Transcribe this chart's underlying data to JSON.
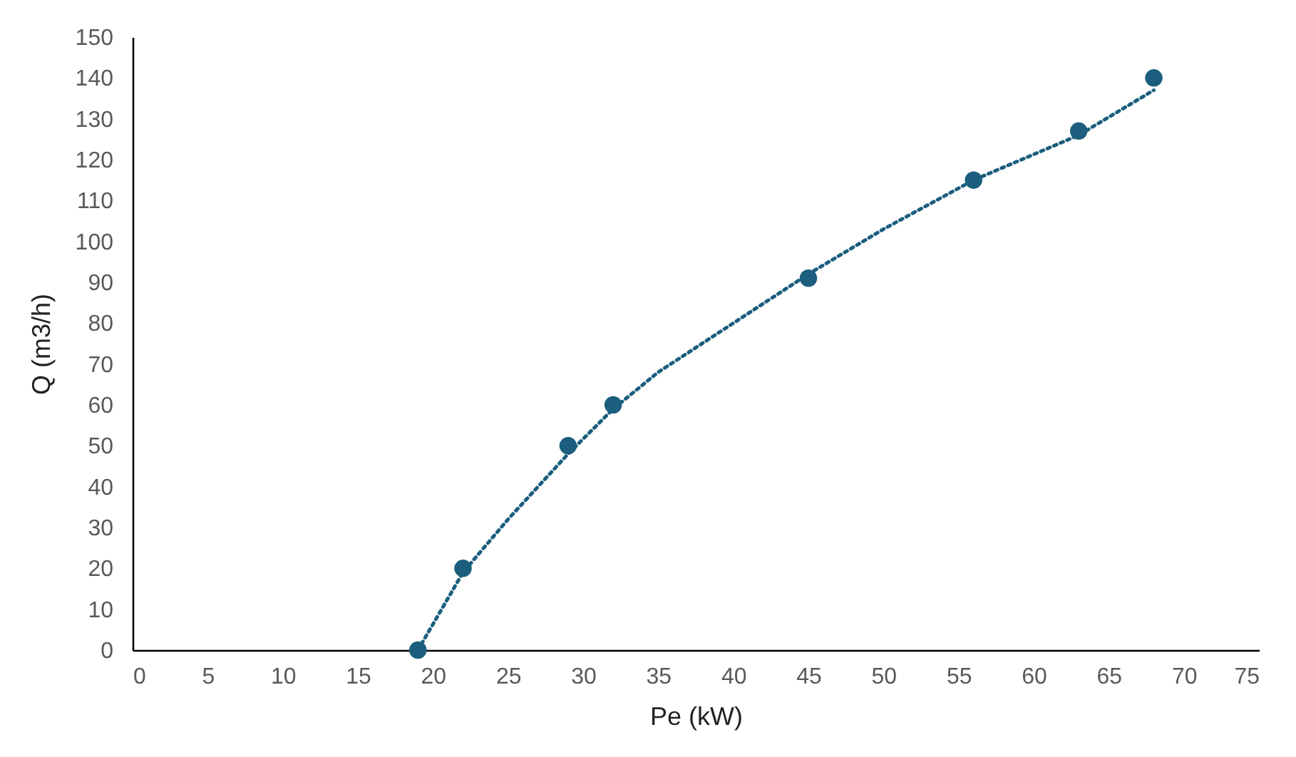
{
  "chart_data": {
    "type": "scatter",
    "xlabel": "Pe (kW)",
    "ylabel": "Q (m3/h)",
    "xlim": [
      0,
      75
    ],
    "xticks": [
      0,
      5,
      10,
      15,
      20,
      25,
      30,
      35,
      40,
      45,
      50,
      55,
      60,
      65,
      70,
      75
    ],
    "ylim": [
      0,
      150
    ],
    "yticks": [
      0,
      10,
      20,
      30,
      40,
      50,
      60,
      70,
      80,
      90,
      100,
      110,
      120,
      130,
      140,
      150
    ],
    "series": [
      {
        "type": "line",
        "color": "#1b5e7e",
        "line_style": "dotted",
        "marker": "none",
        "x": [
          19,
          22,
          25,
          29,
          32,
          35,
          40,
          45,
          50,
          56,
          63,
          68
        ],
        "values": [
          0,
          19,
          32,
          48,
          59,
          68,
          80,
          92,
          103,
          115,
          126,
          137
        ]
      },
      {
        "type": "scatter",
        "color": "#1b5e7e",
        "marker": "circle",
        "x": [
          19,
          22,
          29,
          32,
          45,
          56,
          63,
          68
        ],
        "values": [
          0,
          20,
          50,
          60,
          91,
          115,
          127,
          140
        ]
      }
    ]
  }
}
